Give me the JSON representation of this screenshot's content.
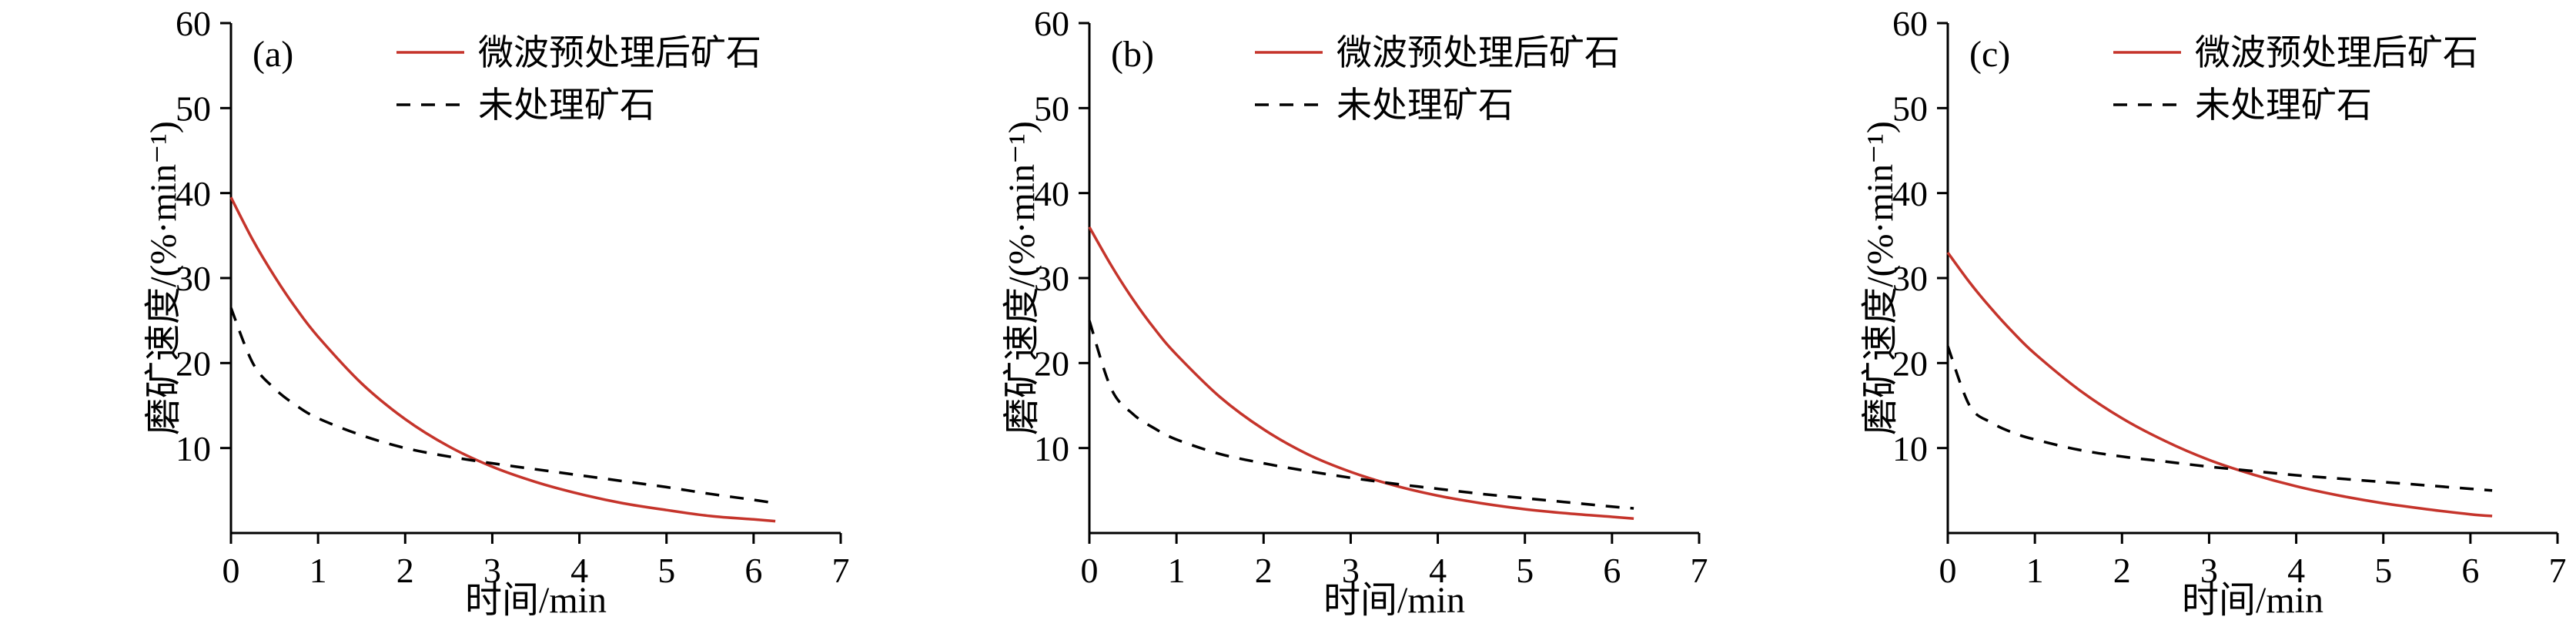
{
  "page": {
    "background": "#ffffff",
    "text_color": "#000000"
  },
  "chart_data": [
    {
      "type": "line",
      "panel_label": "(a)",
      "xlabel": "时间/min",
      "ylabel": "磨矿速度/(%·min⁻¹)",
      "xlim": [
        0,
        7
      ],
      "ylim": [
        0,
        60
      ],
      "xticks": [
        0,
        1,
        2,
        3,
        4,
        5,
        6,
        7
      ],
      "yticks": [
        10,
        20,
        30,
        40,
        50,
        60
      ],
      "grid": false,
      "legend_position": "top-inside",
      "series": [
        {
          "name": "微波预处理后矿石",
          "color": "#c5342b",
          "style": "solid",
          "x": [
            0,
            0.25,
            0.5,
            0.75,
            1,
            1.5,
            2,
            2.5,
            3,
            3.5,
            4,
            4.5,
            5,
            5.5,
            6,
            6.25
          ],
          "y": [
            39.5,
            34.5,
            30.2,
            26.4,
            23.1,
            17.6,
            13.4,
            10.2,
            7.8,
            6.0,
            4.6,
            3.5,
            2.7,
            2.0,
            1.6,
            1.4
          ]
        },
        {
          "name": "未处理矿石",
          "color": "#000000",
          "style": "dashed",
          "x": [
            0,
            0.25,
            0.5,
            0.75,
            1,
            1.5,
            2,
            2.5,
            3,
            3.5,
            4,
            4.5,
            5,
            5.5,
            6,
            6.25
          ],
          "y": [
            26.5,
            20.0,
            17.0,
            15.0,
            13.5,
            11.5,
            10.0,
            9.0,
            8.2,
            7.5,
            6.8,
            6.1,
            5.4,
            4.6,
            3.9,
            3.5
          ]
        }
      ]
    },
    {
      "type": "line",
      "panel_label": "(b)",
      "xlabel": "时间/min",
      "ylabel": "磨矿速度/(%·min⁻¹)",
      "xlim": [
        0,
        7
      ],
      "ylim": [
        0,
        60
      ],
      "xticks": [
        0,
        1,
        2,
        3,
        4,
        5,
        6,
        7
      ],
      "yticks": [
        10,
        20,
        30,
        40,
        50,
        60
      ],
      "grid": false,
      "legend_position": "top-inside",
      "series": [
        {
          "name": "微波预处理后矿石",
          "color": "#c5342b",
          "style": "solid",
          "x": [
            0,
            0.25,
            0.5,
            0.75,
            1,
            1.5,
            2,
            2.5,
            3,
            3.5,
            4,
            4.5,
            5,
            5.5,
            6,
            6.25
          ],
          "y": [
            36.0,
            31.5,
            27.5,
            24.0,
            21.0,
            16.0,
            12.2,
            9.3,
            7.2,
            5.6,
            4.4,
            3.5,
            2.8,
            2.3,
            1.9,
            1.7
          ]
        },
        {
          "name": "未处理矿石",
          "color": "#000000",
          "style": "dashed",
          "x": [
            0,
            0.25,
            0.5,
            0.75,
            1,
            1.5,
            2,
            2.5,
            3,
            3.5,
            4,
            4.5,
            5,
            5.5,
            6,
            6.25
          ],
          "y": [
            25.0,
            17.0,
            14.0,
            12.3,
            11.0,
            9.3,
            8.2,
            7.3,
            6.5,
            5.8,
            5.2,
            4.6,
            4.1,
            3.6,
            3.1,
            2.9
          ]
        }
      ]
    },
    {
      "type": "line",
      "panel_label": "(c)",
      "xlabel": "时间/min",
      "ylabel": "磨矿速度/(%·min⁻¹)",
      "xlim": [
        0,
        7
      ],
      "ylim": [
        0,
        60
      ],
      "xticks": [
        0,
        1,
        2,
        3,
        4,
        5,
        6,
        7
      ],
      "yticks": [
        10,
        20,
        30,
        40,
        50,
        60
      ],
      "grid": false,
      "legend_position": "top-inside",
      "series": [
        {
          "name": "微波预处理后矿石",
          "color": "#c5342b",
          "style": "solid",
          "x": [
            0,
            0.25,
            0.5,
            0.75,
            1,
            1.5,
            2,
            2.5,
            3,
            3.5,
            4,
            4.5,
            5,
            5.5,
            6,
            6.25
          ],
          "y": [
            33.0,
            29.5,
            26.4,
            23.6,
            21.1,
            16.9,
            13.5,
            10.8,
            8.6,
            6.9,
            5.5,
            4.4,
            3.5,
            2.8,
            2.2,
            2.0
          ]
        },
        {
          "name": "未处理矿石",
          "color": "#000000",
          "style": "dashed",
          "x": [
            0,
            0.25,
            0.5,
            0.75,
            1,
            1.5,
            2,
            2.5,
            3,
            3.5,
            4,
            4.5,
            5,
            5.5,
            6,
            6.25
          ],
          "y": [
            22.0,
            15.0,
            13.0,
            11.8,
            11.0,
            9.8,
            9.0,
            8.4,
            7.8,
            7.3,
            6.8,
            6.4,
            6.0,
            5.6,
            5.2,
            5.0
          ]
        }
      ]
    }
  ]
}
